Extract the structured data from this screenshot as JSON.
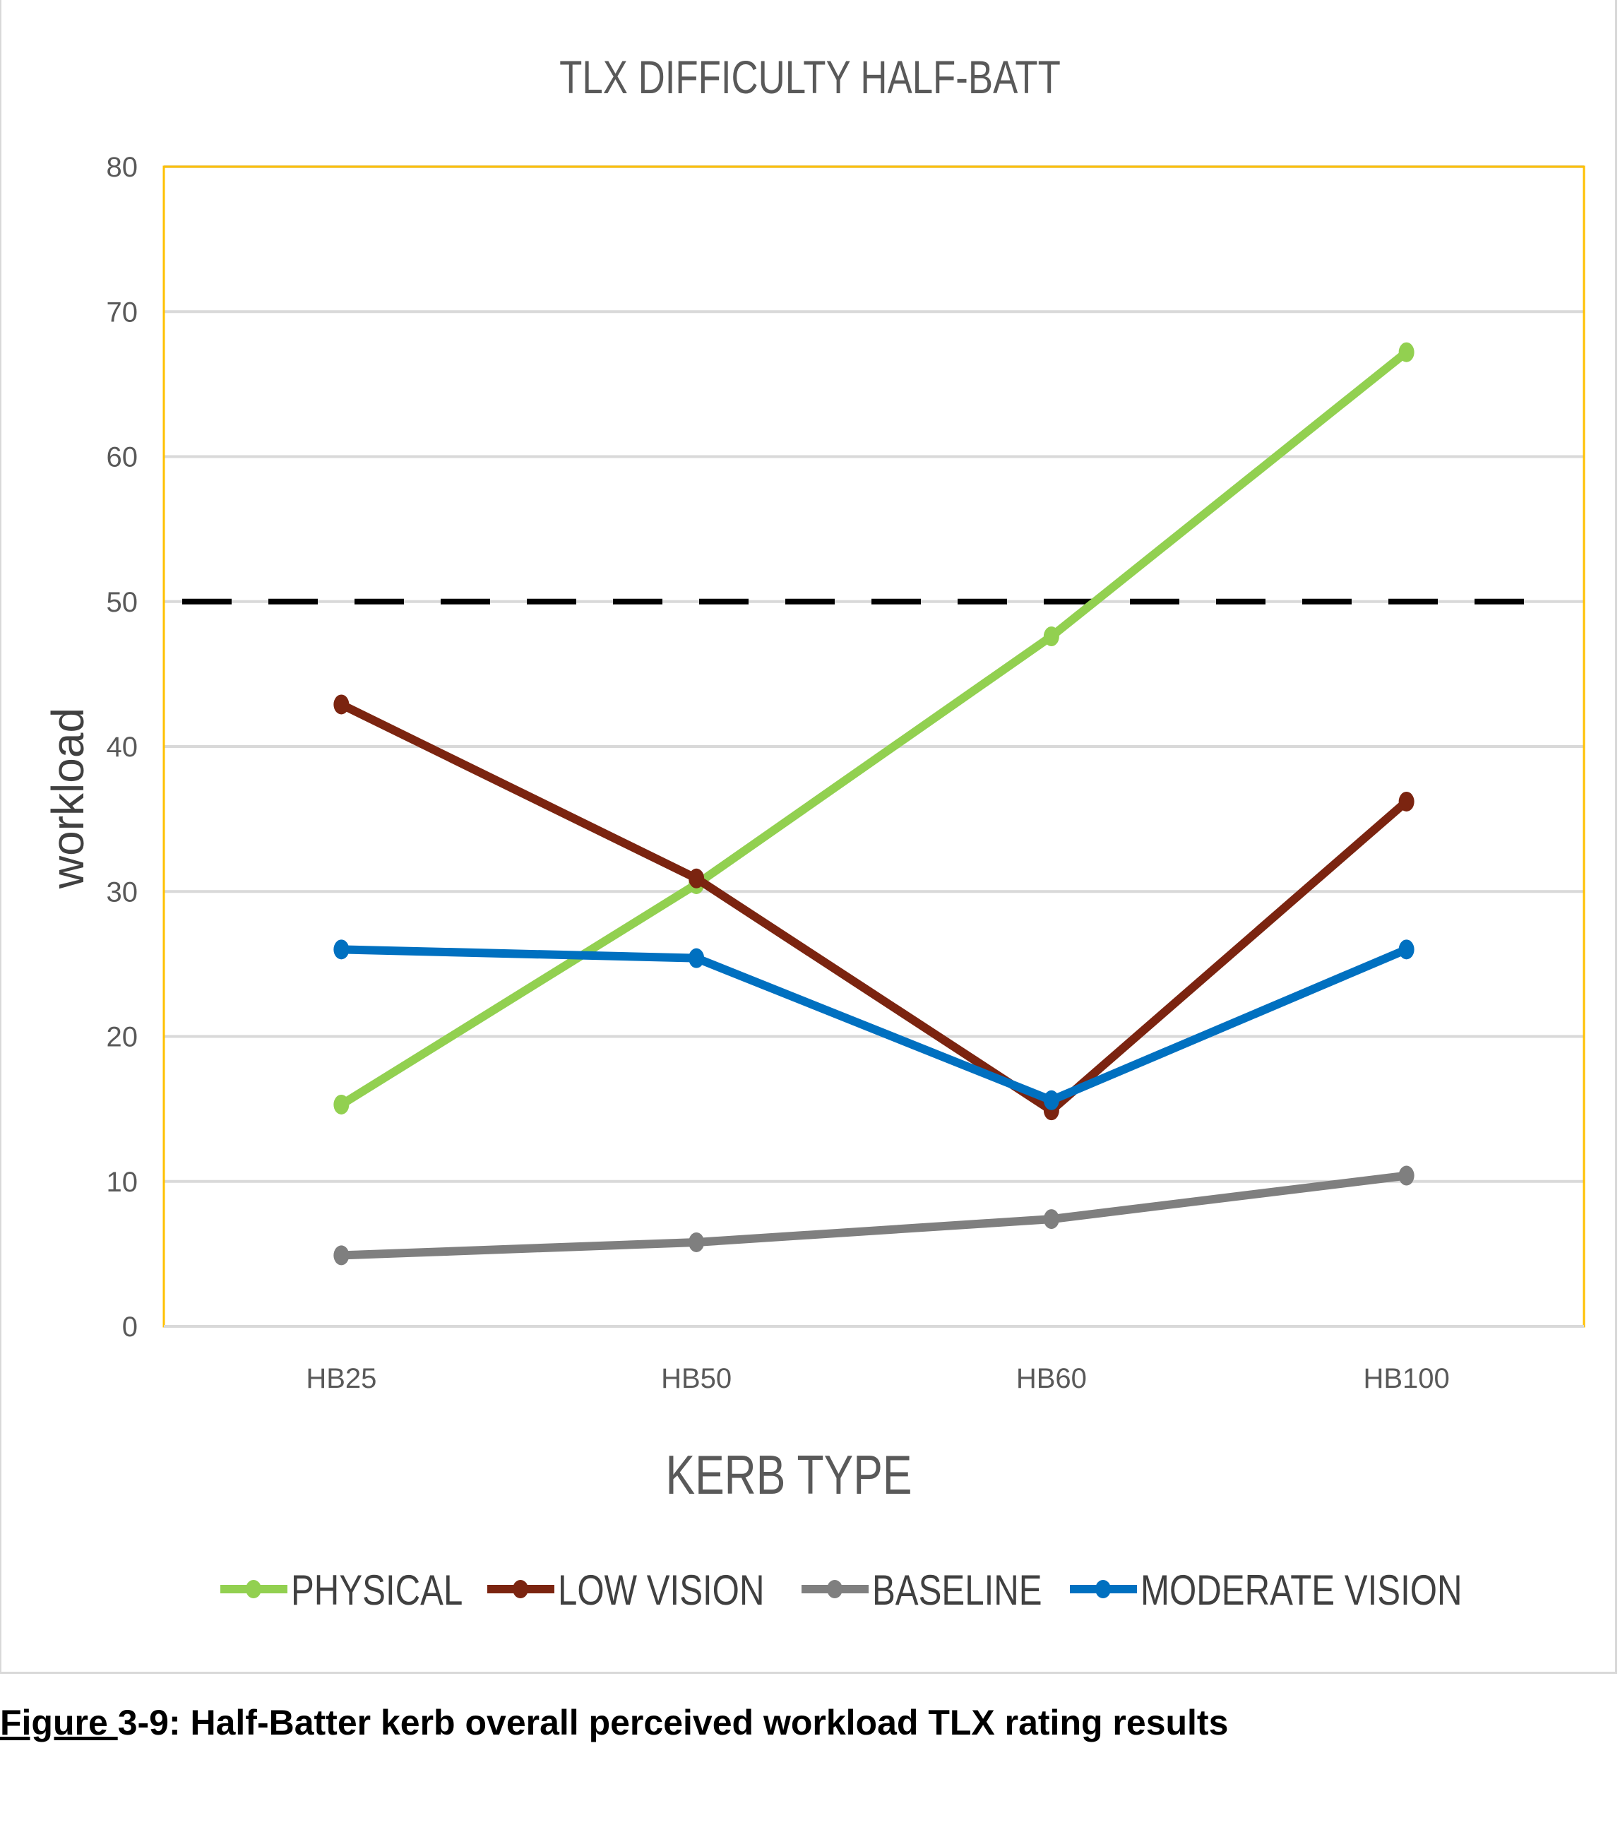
{
  "chart_data": {
    "type": "line",
    "title": "TLX DIFFICULTY  HALF-BATT",
    "xlabel": "KERB TYPE",
    "ylabel": "workload",
    "categories": [
      "HB25",
      "HB50",
      "HB60",
      "HB100"
    ],
    "ylim": [
      0,
      80
    ],
    "yticks": [
      0,
      10,
      20,
      30,
      40,
      50,
      60,
      70,
      80
    ],
    "grid": true,
    "legend": "bottom",
    "reference_line": {
      "y": 50,
      "style": "dashed",
      "color": "#000000"
    },
    "series": [
      {
        "name": "PHYSICAL",
        "color": "#92d050",
        "values": [
          15.3,
          30.5,
          47.6,
          67.2
        ]
      },
      {
        "name": "LOW VISION",
        "color": "#7b2410",
        "values": [
          42.9,
          30.9,
          14.9,
          36.2
        ]
      },
      {
        "name": "BASELINE",
        "color": "#7f7f7f",
        "values": [
          4.9,
          5.8,
          7.4,
          10.4
        ]
      },
      {
        "name": "MODERATE VISION",
        "color": "#0070c0",
        "values": [
          26.0,
          25.4,
          15.6,
          26.0
        ]
      }
    ],
    "plot_border_color": "#ffc000"
  },
  "caption": {
    "figure_label": "Figure ",
    "text": "3-9: Half-Batter kerb overall perceived workload TLX rating results"
  }
}
